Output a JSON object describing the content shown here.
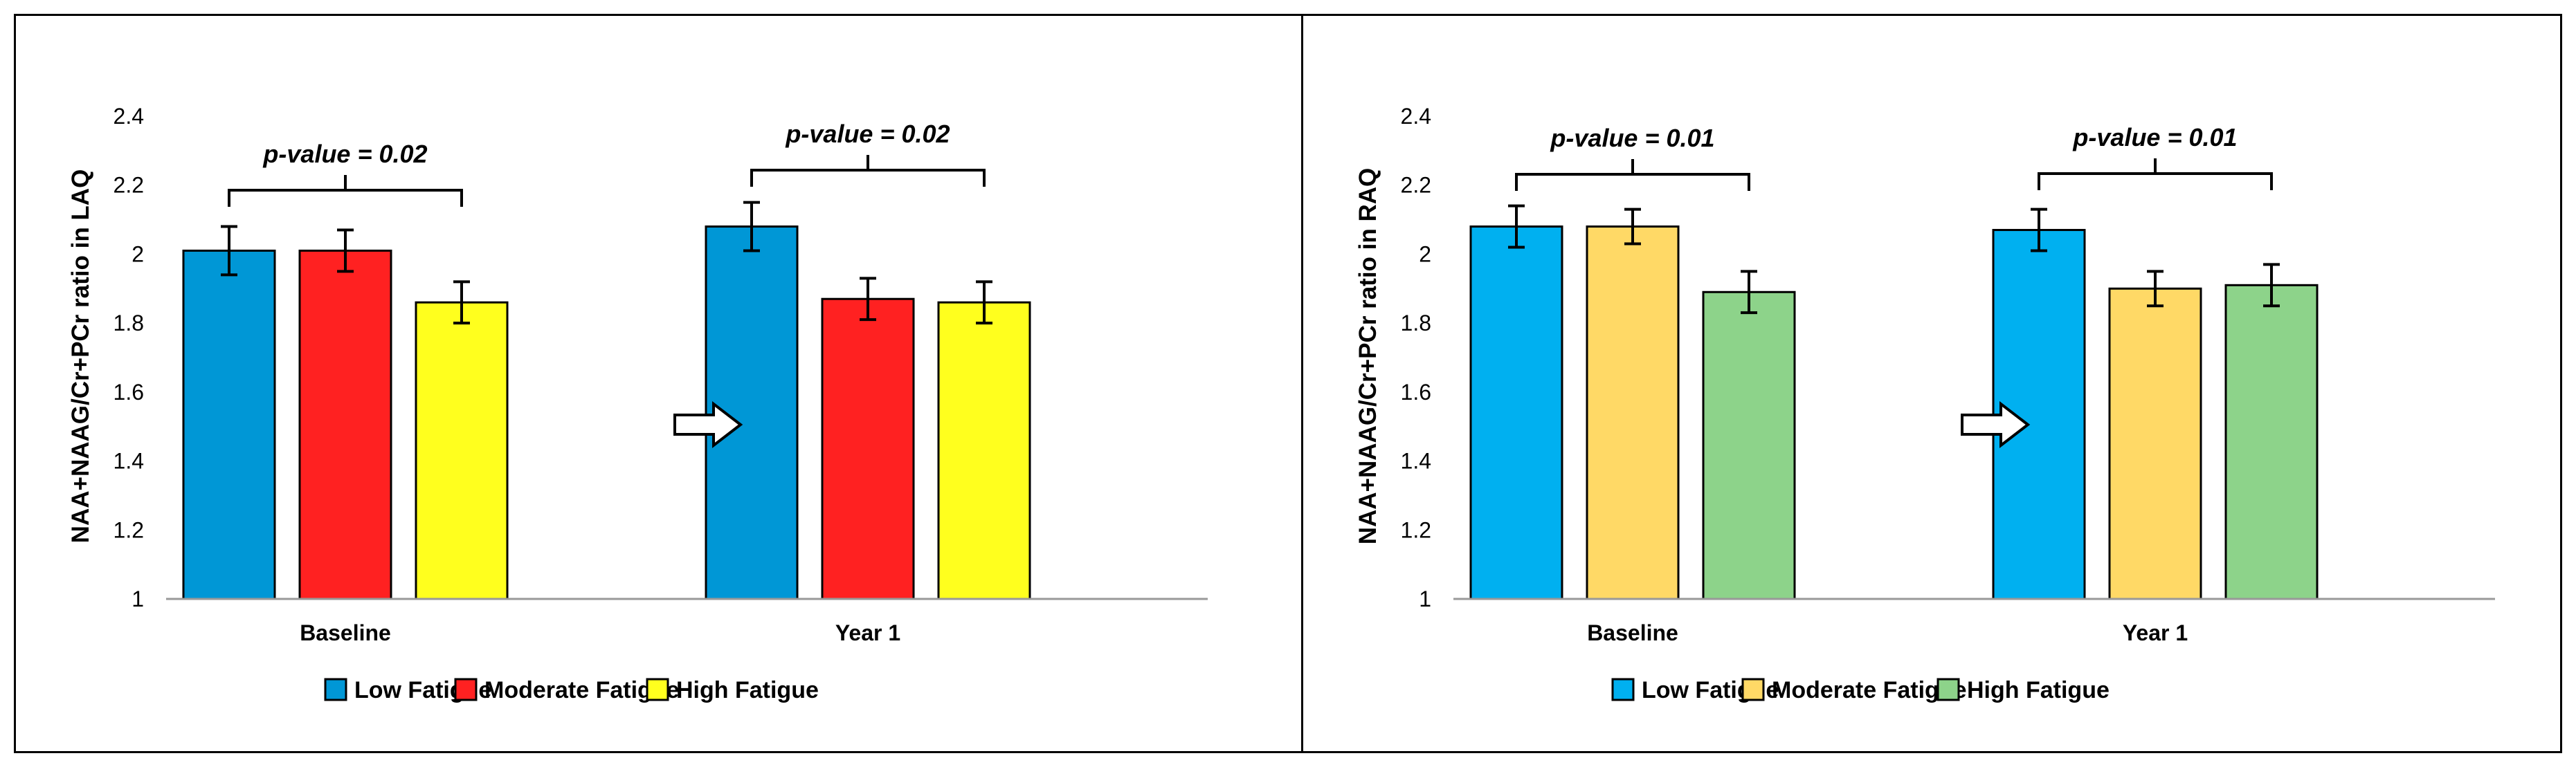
{
  "chart_data": [
    {
      "type": "bar",
      "ylabel": "NAA+NAAG/Cr+PCr ratio in LAQ",
      "xlabel": "",
      "ylim": [
        1,
        2.4
      ],
      "yticks": [
        1,
        1.2,
        1.4,
        1.6,
        1.8,
        2,
        2.2,
        2.4
      ],
      "categories": [
        "Baseline",
        "Year 1"
      ],
      "series": [
        {
          "name": "Low Fatigue",
          "color": "#0097D6",
          "values": [
            2.01,
            2.08
          ],
          "errors": [
            0.07,
            0.07
          ]
        },
        {
          "name": "Moderate Fatigue",
          "color": "#FF2121",
          "values": [
            2.01,
            1.87
          ],
          "errors": [
            0.06,
            0.06
          ]
        },
        {
          "name": "High Fatigue",
          "color": "#FFFF1E",
          "values": [
            1.86,
            1.86
          ],
          "errors": [
            0.06,
            0.06
          ]
        }
      ],
      "annotations": [
        "p-value = 0.02",
        "p-value = 0.02"
      ],
      "legend": "bottom",
      "grid": false
    },
    {
      "type": "bar",
      "ylabel": "NAA+NAAG/Cr+PCr ratio in RAQ",
      "xlabel": "",
      "ylim": [
        1,
        2.4
      ],
      "yticks": [
        1,
        1.2,
        1.4,
        1.6,
        1.8,
        2,
        2.2,
        2.4
      ],
      "categories": [
        "Baseline",
        "Year 1"
      ],
      "series": [
        {
          "name": "Low Fatigue",
          "color": "#00B0F0",
          "values": [
            2.08,
            2.07
          ],
          "errors": [
            0.06,
            0.06
          ]
        },
        {
          "name": "Moderate Fatigue",
          "color": "#FFD966",
          "values": [
            2.08,
            1.9
          ],
          "errors": [
            0.05,
            0.05
          ]
        },
        {
          "name": "High Fatigue",
          "color": "#8DD38A",
          "values": [
            1.89,
            1.91
          ],
          "errors": [
            0.06,
            0.06
          ]
        }
      ],
      "annotations": [
        "p-value = 0.01",
        "p-value = 0.01"
      ],
      "legend": "bottom",
      "grid": false
    }
  ]
}
